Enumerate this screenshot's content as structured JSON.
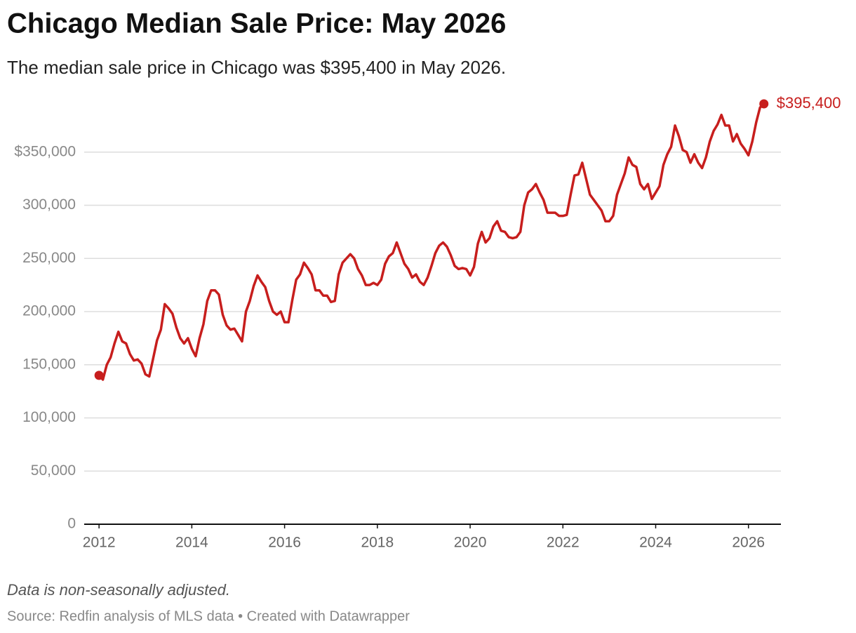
{
  "chart_data": {
    "type": "line",
    "title": "Chicago Median Sale Price: May 2026",
    "subtitle": "The median sale price in Chicago was $395,400 in May 2026.",
    "note": "Data is non-seasonally adjusted.",
    "source": "Source: Redfin analysis of MLS data • Created with Datawrapper",
    "x": [
      2012,
      2012.083,
      2012.167,
      2012.25,
      2012.333,
      2012.417,
      2012.5,
      2012.583,
      2012.667,
      2012.75,
      2012.833,
      2012.917,
      2013,
      2013.083,
      2013.167,
      2013.25,
      2013.333,
      2013.417,
      2013.5,
      2013.583,
      2013.667,
      2013.75,
      2013.833,
      2013.917,
      2014,
      2014.083,
      2014.167,
      2014.25,
      2014.333,
      2014.417,
      2014.5,
      2014.583,
      2014.667,
      2014.75,
      2014.833,
      2014.917,
      2015,
      2015.083,
      2015.167,
      2015.25,
      2015.333,
      2015.417,
      2015.5,
      2015.583,
      2015.667,
      2015.75,
      2015.833,
      2015.917,
      2016,
      2016.083,
      2016.167,
      2016.25,
      2016.333,
      2016.417,
      2016.5,
      2016.583,
      2016.667,
      2016.75,
      2016.833,
      2016.917,
      2017,
      2017.083,
      2017.167,
      2017.25,
      2017.333,
      2017.417,
      2017.5,
      2017.583,
      2017.667,
      2017.75,
      2017.833,
      2017.917,
      2018,
      2018.083,
      2018.167,
      2018.25,
      2018.333,
      2018.417,
      2018.5,
      2018.583,
      2018.667,
      2018.75,
      2018.833,
      2018.917,
      2019,
      2019.083,
      2019.167,
      2019.25,
      2019.333,
      2019.417,
      2019.5,
      2019.583,
      2019.667,
      2019.75,
      2019.833,
      2019.917,
      2020,
      2020.083,
      2020.167,
      2020.25,
      2020.333,
      2020.417,
      2020.5,
      2020.583,
      2020.667,
      2020.75,
      2020.833,
      2020.917,
      2021,
      2021.083,
      2021.167,
      2021.25,
      2021.333,
      2021.417,
      2021.5,
      2021.583,
      2021.667,
      2021.75,
      2021.833,
      2021.917,
      2022,
      2022.083,
      2022.167,
      2022.25,
      2022.333,
      2022.417,
      2022.5,
      2022.583,
      2022.667,
      2022.75,
      2022.833,
      2022.917,
      2023,
      2023.083,
      2023.167,
      2023.25,
      2023.333,
      2023.417,
      2023.5,
      2023.583,
      2023.667,
      2023.75,
      2023.833,
      2023.917,
      2024,
      2024.083,
      2024.167,
      2024.25,
      2024.333,
      2024.417,
      2024.5,
      2024.583,
      2024.667,
      2024.75,
      2024.833,
      2024.917,
      2025,
      2025.083,
      2025.167,
      2025.25,
      2025.333,
      2025.417,
      2025.5,
      2025.583,
      2025.667,
      2025.75,
      2025.833,
      2025.917,
      2026,
      2026.083,
      2026.167,
      2026.25,
      2026.333
    ],
    "series": [
      {
        "name": "Median sale price",
        "color": "#c71e1d",
        "values": [
          140000,
          136000,
          150000,
          157000,
          170000,
          181000,
          172000,
          170000,
          160000,
          154000,
          155000,
          151000,
          141000,
          139000,
          156000,
          173000,
          183000,
          207000,
          203000,
          198000,
          185000,
          175000,
          170000,
          175000,
          165000,
          158000,
          175000,
          188000,
          210000,
          220000,
          220000,
          216000,
          197000,
          187000,
          183000,
          184000,
          178000,
          172000,
          200000,
          210000,
          224000,
          234000,
          228000,
          223000,
          210000,
          200000,
          197000,
          200000,
          190000,
          190000,
          211000,
          230000,
          235000,
          246000,
          241000,
          235000,
          220000,
          220000,
          215000,
          215000,
          209000,
          210000,
          235000,
          246000,
          250000,
          254000,
          250000,
          240000,
          234000,
          225000,
          225000,
          227000,
          225000,
          230000,
          245000,
          252000,
          255000,
          265000,
          255000,
          245000,
          240000,
          232000,
          235000,
          228000,
          225000,
          232000,
          243000,
          255000,
          262000,
          265000,
          261000,
          253000,
          243000,
          240000,
          241000,
          240000,
          234000,
          242000,
          264000,
          275000,
          265000,
          269000,
          280000,
          285000,
          276000,
          275000,
          270000,
          269000,
          270000,
          275000,
          300000,
          312000,
          315000,
          320000,
          312000,
          305000,
          293000,
          293000,
          293000,
          290000,
          290000,
          291000,
          310000,
          328000,
          329000,
          340000,
          325000,
          310000,
          305000,
          300000,
          295000,
          285000,
          285000,
          290000,
          310000,
          320000,
          330000,
          345000,
          338000,
          336000,
          320000,
          315000,
          320000,
          306000,
          312000,
          318000,
          338000,
          348000,
          355000,
          375000,
          365000,
          352000,
          350000,
          340000,
          348000,
          340000,
          335000,
          345000,
          360000,
          370000,
          376000,
          385000,
          375000,
          375000,
          360000,
          367000,
          358000,
          353000,
          347000,
          360000,
          378000,
          392000,
          395400
        ],
        "value_labels": [
          null,
          null,
          null,
          null,
          null,
          null,
          null,
          null,
          null,
          null,
          null,
          null,
          null,
          null,
          null,
          null,
          null,
          null,
          null,
          null,
          null,
          null,
          null,
          null,
          null,
          null,
          null,
          null,
          null,
          null,
          null,
          null,
          null,
          null,
          null,
          null,
          null,
          null,
          null,
          null,
          null,
          null,
          null,
          null,
          null,
          null,
          null,
          null,
          null,
          null,
          null,
          null,
          null,
          null,
          null,
          null,
          null,
          null,
          null,
          null,
          null,
          null,
          null,
          null,
          null,
          null,
          null,
          null,
          null,
          null,
          null,
          null,
          null,
          null,
          null,
          null,
          null,
          null,
          null,
          null,
          null,
          null,
          null,
          null,
          null,
          null,
          null,
          null,
          null,
          null,
          null,
          null,
          null,
          null,
          null,
          null,
          null,
          null,
          null,
          null,
          null,
          null,
          null,
          null,
          null,
          null,
          null,
          null,
          null,
          null,
          null,
          null,
          null,
          null,
          null,
          null,
          null,
          null,
          null,
          null,
          null,
          null,
          null,
          null,
          null,
          null,
          null,
          null,
          null,
          null,
          null,
          null,
          null,
          null,
          null,
          null,
          null,
          null,
          null,
          null,
          null,
          null,
          null,
          null,
          null,
          null,
          null,
          null,
          null,
          null,
          null,
          null,
          null,
          null,
          null,
          null,
          null,
          null,
          null,
          null,
          null,
          null,
          null,
          null,
          null,
          null,
          null,
          null,
          null,
          null,
          null,
          null,
          "$395,400"
        ]
      }
    ],
    "end_markers": true,
    "xlim": [
      2011.68,
      2026.7
    ],
    "xticks": [
      2012,
      2014,
      2016,
      2018,
      2020,
      2022,
      2024,
      2026
    ],
    "ylim": [
      0,
      400000
    ],
    "yticks": [
      0,
      {
        "value": 50000,
        "label": "50,000"
      },
      {
        "value": 100000,
        "label": "100,000"
      },
      {
        "value": 150000,
        "label": "150,000"
      },
      {
        "value": 200000,
        "label": "200,000"
      },
      {
        "value": 250000,
        "label": "250,000"
      },
      {
        "value": 300000,
        "label": "300,000"
      },
      {
        "value": 350000,
        "label": "$350,000"
      }
    ],
    "grid": true
  }
}
